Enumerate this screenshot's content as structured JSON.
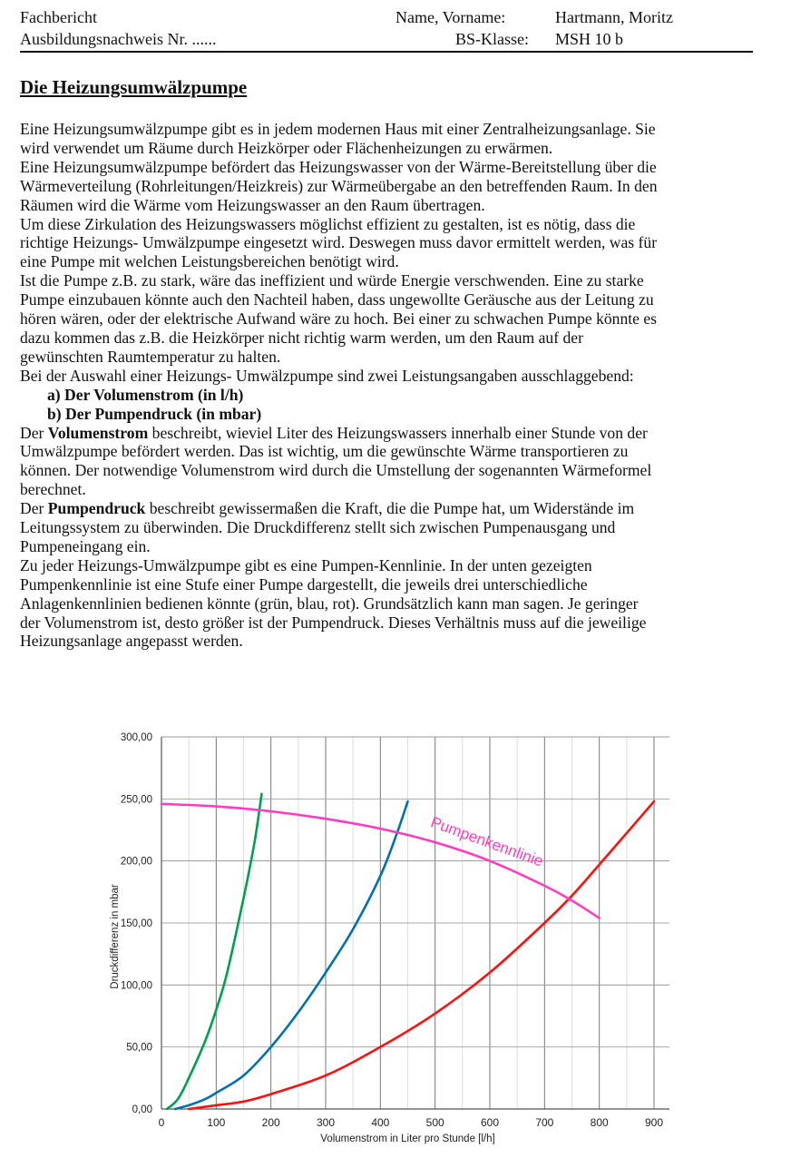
{
  "header": {
    "left_line1": "Fachbericht",
    "left_line2": "Ausbildungsnachweis Nr. ......",
    "name_label": "Name, Vorname:",
    "name_value": "Hartmann, Moritz",
    "class_label": "BS-Klasse:",
    "class_value": "MSH 10 b"
  },
  "title": "Die Heizungsumwälzpumpe",
  "body_lines": [
    {
      "indent": false,
      "segments": [
        {
          "t": "Eine Heizungsumwälzpumpe gibt es in jedem modernen Haus mit einer Zentralheizungsanlage. Sie"
        }
      ]
    },
    {
      "indent": false,
      "segments": [
        {
          "t": "wird verwendet um Räume durch Heizkörper oder Flächenheizungen zu erwärmen."
        }
      ]
    },
    {
      "indent": false,
      "segments": [
        {
          "t": "Eine Heizungsumwälzpumpe befördert das Heizungswasser von der Wärme-Bereitstellung über die"
        }
      ]
    },
    {
      "indent": false,
      "segments": [
        {
          "t": "Wärmeverteilung (Rohrleitungen/Heizkreis) zur Wärmeübergabe an den betreffenden Raum. In den"
        }
      ]
    },
    {
      "indent": false,
      "segments": [
        {
          "t": "Räumen wird die Wärme vom Heizungswasser an den Raum übertragen."
        }
      ]
    },
    {
      "indent": false,
      "segments": [
        {
          "t": "Um diese Zirkulation des Heizungswassers möglichst effizient zu gestalten, ist es nötig, dass die"
        }
      ]
    },
    {
      "indent": false,
      "segments": [
        {
          "t": "richtige Heizungs- Umwälzpumpe eingesetzt wird. Deswegen muss davor ermittelt werden, was für"
        }
      ]
    },
    {
      "indent": false,
      "segments": [
        {
          "t": "eine Pumpe mit welchen Leistungsbereichen benötigt wird."
        }
      ]
    },
    {
      "indent": false,
      "segments": [
        {
          "t": "Ist die Pumpe z.B. zu stark, wäre das ineffizient und würde Energie verschwenden. Eine zu starke"
        }
      ]
    },
    {
      "indent": false,
      "segments": [
        {
          "t": "Pumpe einzubauen könnte auch den Nachteil haben, dass ungewollte Geräusche aus der Leitung zu"
        }
      ]
    },
    {
      "indent": false,
      "segments": [
        {
          "t": "hören wären, oder der elektrische Aufwand wäre zu hoch. Bei einer zu schwachen Pumpe könnte es"
        }
      ]
    },
    {
      "indent": false,
      "segments": [
        {
          "t": "dazu kommen das z.B. die Heizkörper nicht richtig warm werden, um den Raum auf der"
        }
      ]
    },
    {
      "indent": false,
      "segments": [
        {
          "t": "gewünschten Raumtemperatur zu halten."
        }
      ]
    },
    {
      "indent": false,
      "segments": [
        {
          "t": "Bei der Auswahl einer Heizungs- Umwälzpumpe sind zwei Leistungsangaben ausschlaggebend:"
        }
      ]
    },
    {
      "indent": true,
      "segments": [
        {
          "t": "a)   Der Volumenstrom (in l/h)",
          "b": true
        }
      ]
    },
    {
      "indent": true,
      "segments": [
        {
          "t": "b)   Der Pumpendruck (in mbar)",
          "b": true
        }
      ]
    },
    {
      "indent": false,
      "segments": [
        {
          "t": "Der "
        },
        {
          "t": "Volumenstrom",
          "b": true
        },
        {
          "t": " beschreibt, wieviel Liter des Heizungswassers innerhalb einer Stunde von der"
        }
      ]
    },
    {
      "indent": false,
      "segments": [
        {
          "t": "Umwälzpumpe befördert werden. Das ist wichtig, um die gewünschte Wärme transportieren zu"
        }
      ]
    },
    {
      "indent": false,
      "segments": [
        {
          "t": "können. Der notwendige Volumenstrom wird durch die Umstellung der sogenannten Wärmeformel"
        }
      ]
    },
    {
      "indent": false,
      "segments": [
        {
          "t": "berechnet."
        }
      ]
    },
    {
      "indent": false,
      "segments": [
        {
          "t": "Der "
        },
        {
          "t": "Pumpendruck",
          "b": true
        },
        {
          "t": " beschreibt gewissermaßen die Kraft, die die Pumpe hat, um Widerstände im"
        }
      ]
    },
    {
      "indent": false,
      "segments": [
        {
          "t": "Leitungssystem zu überwinden. Die Druckdifferenz stellt sich zwischen Pumpenausgang und"
        }
      ]
    },
    {
      "indent": false,
      "segments": [
        {
          "t": "Pumpeneingang ein."
        }
      ]
    },
    {
      "indent": false,
      "segments": [
        {
          "t": "Zu jeder Heizungs-Umwälzpumpe gibt es eine Pumpen-Kennlinie. In der unten gezeigten"
        }
      ]
    },
    {
      "indent": false,
      "segments": [
        {
          "t": "Pumpenkennlinie ist eine Stufe einer Pumpe dargestellt, die jeweils drei unterschiedliche"
        }
      ]
    },
    {
      "indent": false,
      "segments": [
        {
          "t": "Anlagenkennlinien bedienen könnte (grün, blau, rot). Grundsätzlich kann man sagen. Je geringer"
        }
      ]
    },
    {
      "indent": false,
      "segments": [
        {
          "t": "der Volumenstrom ist, desto größer ist der Pumpendruck. Dieses Verhältnis muss auf die jeweilige"
        }
      ]
    },
    {
      "indent": false,
      "segments": [
        {
          "t": "Heizungsanlage angepasst werden."
        }
      ]
    }
  ],
  "chart_data": {
    "type": "line",
    "title": "",
    "xlabel": "Volumenstrom in Liter pro Stunde [l/h]",
    "ylabel": "Druckdifferenz in mbar",
    "xlim": [
      0,
      900
    ],
    "ylim": [
      0,
      300
    ],
    "xticks": [
      "0",
      "100",
      "200",
      "300",
      "400",
      "500",
      "600",
      "700",
      "800",
      "900"
    ],
    "yticks": [
      "0,00",
      "50,00",
      "100,00",
      "150,00",
      "200,00",
      "250,00",
      "300,00"
    ],
    "grid": true,
    "annotation": "Pumpenkennlinie",
    "series": [
      {
        "color": "#00a050",
        "x": [
          10,
          30,
          50,
          80,
          100,
          120,
          150,
          170,
          183
        ],
        "y": [
          0,
          8,
          25,
          55,
          80,
          110,
          170,
          215,
          254
        ]
      },
      {
        "color": "#0070b0",
        "x": [
          25,
          50,
          80,
          100,
          150,
          200,
          250,
          300,
          350,
          400,
          430,
          450
        ],
        "y": [
          0,
          3,
          8,
          13,
          27,
          50,
          78,
          110,
          145,
          188,
          222,
          248
        ]
      },
      {
        "color": "#ff1010",
        "x": [
          50,
          100,
          150,
          200,
          300,
          400,
          500,
          600,
          700,
          750,
          800,
          900
        ],
        "y": [
          0,
          3,
          6,
          12,
          27,
          50,
          77,
          110,
          150,
          172,
          197,
          248
        ]
      },
      {
        "name": "Pumpenkennlinie",
        "color": "#ff3cc0",
        "x": [
          0,
          100,
          200,
          300,
          400,
          500,
          600,
          700,
          750,
          800
        ],
        "y": [
          246,
          244,
          240,
          234,
          226,
          215,
          200,
          180,
          168,
          154
        ]
      }
    ]
  }
}
